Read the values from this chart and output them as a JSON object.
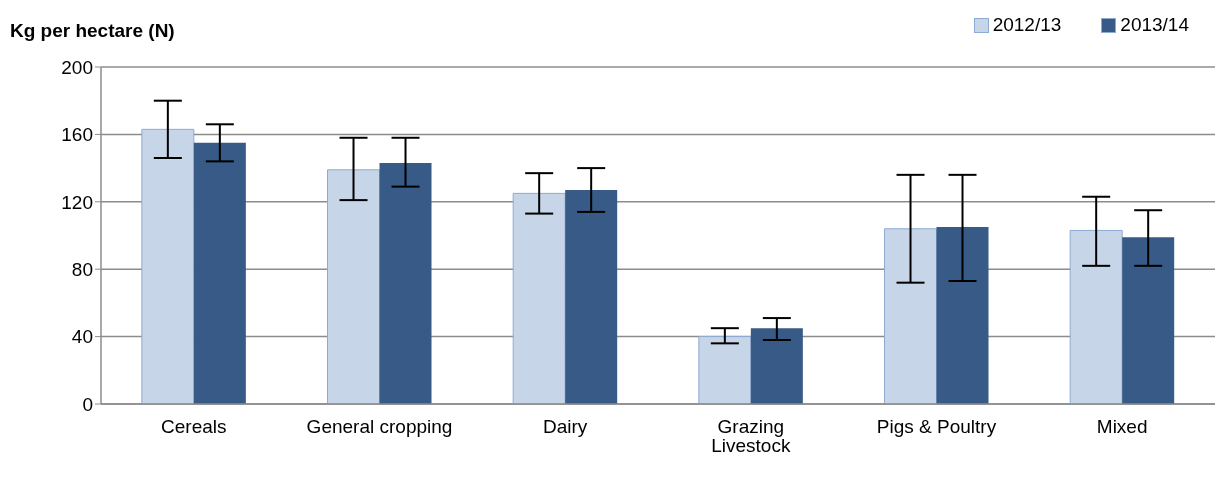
{
  "chart_data": {
    "type": "bar",
    "ylabel": "Kg per hectare (N)",
    "categories": [
      "Cereals",
      "General cropping",
      "Dairy",
      "Grazing Livestock",
      "Pigs & Poultry",
      "Mixed"
    ],
    "series": [
      {
        "name": "2012/13",
        "color": "#c6d5e8",
        "values": [
          163,
          139,
          125,
          40,
          104,
          103
        ],
        "errors": [
          [
            146,
            180
          ],
          [
            121,
            158
          ],
          [
            113,
            137
          ],
          [
            36,
            45
          ],
          [
            72,
            136
          ],
          [
            82,
            123
          ]
        ]
      },
      {
        "name": "2013/14",
        "color": "#375a87",
        "values": [
          155,
          143,
          127,
          45,
          105,
          99
        ],
        "errors": [
          [
            144,
            166
          ],
          [
            129,
            158
          ],
          [
            114,
            140
          ],
          [
            38,
            51
          ],
          [
            73,
            136
          ],
          [
            82,
            115
          ]
        ]
      }
    ],
    "ylim": [
      0,
      200
    ],
    "yticks": [
      0,
      40,
      80,
      120,
      160,
      200
    ],
    "grid": "y",
    "legend": "top right"
  }
}
